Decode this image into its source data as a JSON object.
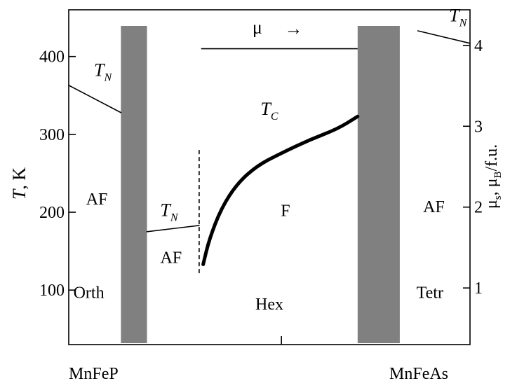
{
  "chart_data": {
    "type": "line",
    "title": "",
    "left_axis": {
      "symbol": "T",
      "unit": ", K",
      "ticks": [
        100,
        200,
        300,
        400
      ],
      "ylim": [
        30,
        460
      ]
    },
    "right_axis": {
      "label_prefix": "μ",
      "label_sub1": "s",
      "label_mid": ", μ",
      "label_sub2": "B",
      "label_suffix": "/f.u.",
      "ticks": [
        1,
        2,
        3,
        4
      ],
      "ylim": [
        0.3,
        4.44
      ]
    },
    "x_axis": {
      "left_end_label": "MnFeP",
      "right_end_label": "MnFeAs",
      "xlim": [
        0,
        1
      ]
    },
    "phase_regions": [
      {
        "label": "Orth",
        "x": 0.05,
        "y_T": 90
      },
      {
        "label": "Hex",
        "x": 0.5,
        "y_T": 75
      },
      {
        "label": "Tetr",
        "x": 0.9,
        "y_T": 90
      }
    ],
    "phase_labels": [
      {
        "label": "AF",
        "x": 0.07,
        "y_T": 210
      },
      {
        "label": "AF",
        "x": 0.255,
        "y_T": 135
      },
      {
        "label": "F",
        "x": 0.54,
        "y_T": 195
      },
      {
        "label": "AF",
        "x": 0.91,
        "y_T": 200
      }
    ],
    "transition_labels": [
      {
        "symbol": "T",
        "sub": "N",
        "x": 0.085,
        "y_T": 375
      },
      {
        "symbol": "T",
        "sub": "N",
        "x": 0.25,
        "y_T": 195
      },
      {
        "symbol": "T",
        "sub": "C",
        "x": 0.5,
        "y_T": 325
      },
      {
        "symbol": "T",
        "sub": "N",
        "x": 0.97,
        "y_T": 445
      }
    ],
    "series": [
      {
        "style": "thin",
        "points": [
          [
            0,
            363
          ],
          [
            0.13,
            328
          ]
        ]
      },
      {
        "style": "thin",
        "points": [
          [
            0.195,
            175
          ],
          [
            0.325,
            183
          ]
        ]
      },
      {
        "style": "thin",
        "points": [
          [
            0.87,
            433
          ],
          [
            1,
            417
          ]
        ]
      },
      {
        "style": "thick",
        "points": [
          [
            0.335,
            133
          ],
          [
            0.35,
            165
          ],
          [
            0.38,
            205
          ],
          [
            0.42,
            237
          ],
          [
            0.47,
            260
          ],
          [
            0.53,
            276
          ],
          [
            0.6,
            293
          ],
          [
            0.67,
            307
          ],
          [
            0.72,
            323
          ]
        ]
      }
    ],
    "moment_line": {
      "label": "μ",
      "arrow": "→",
      "x_range": [
        0.33,
        0.72
      ],
      "y_T": 410
    },
    "dashed_boundary": {
      "x": 0.325,
      "y_range_T": [
        120,
        280
      ]
    },
    "shaded_bands": [
      {
        "x_range": [
          0.13,
          0.195
        ],
        "color": "#808080"
      },
      {
        "x_range": [
          0.72,
          0.825
        ],
        "color": "#808080"
      }
    ],
    "middle_tick_x": 0.53,
    "grid": false,
    "legend": "none"
  }
}
